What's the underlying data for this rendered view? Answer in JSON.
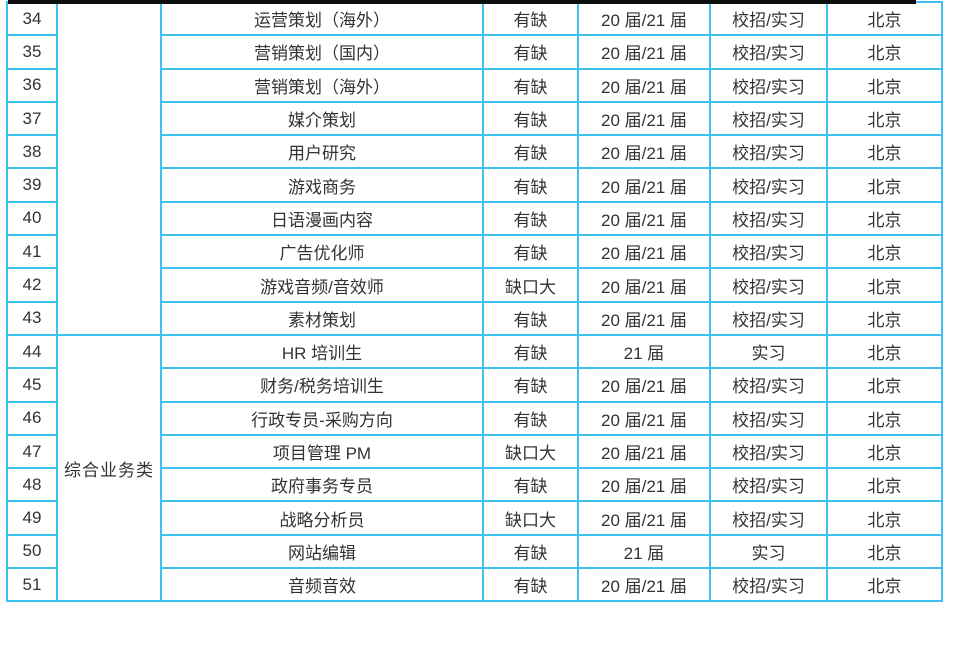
{
  "page": {
    "background": "#ffffff"
  },
  "colors": {
    "table_border": "#3ec1f0",
    "text": "#333333",
    "status_alert": "#ee1111",
    "top_divider": "#0d0d0d"
  },
  "divider": {
    "present": true
  },
  "table": {
    "columns": [
      "row-number",
      "category",
      "position",
      "status",
      "batch",
      "recruit-type",
      "location"
    ],
    "category_groups": [
      {
        "label": "",
        "start_index": 0,
        "rowspan": 10
      },
      {
        "label": "综合业务类",
        "start_index": 10,
        "rowspan": 8
      }
    ],
    "rows": [
      {
        "num": "34",
        "position": "运营策划（海外）",
        "status": "有缺",
        "status_highlight": false,
        "batch": "20 届/21 届",
        "recruit_type": "校招/实习",
        "location": "北京"
      },
      {
        "num": "35",
        "position": "营销策划（国内）",
        "status": "有缺",
        "status_highlight": false,
        "batch": "20 届/21 届",
        "recruit_type": "校招/实习",
        "location": "北京"
      },
      {
        "num": "36",
        "position": "营销策划（海外）",
        "status": "有缺",
        "status_highlight": false,
        "batch": "20 届/21 届",
        "recruit_type": "校招/实习",
        "location": "北京"
      },
      {
        "num": "37",
        "position": "媒介策划",
        "status": "有缺",
        "status_highlight": false,
        "batch": "20 届/21 届",
        "recruit_type": "校招/实习",
        "location": "北京"
      },
      {
        "num": "38",
        "position": "用户研究",
        "status": "有缺",
        "status_highlight": false,
        "batch": "20 届/21 届",
        "recruit_type": "校招/实习",
        "location": "北京"
      },
      {
        "num": "39",
        "position": "游戏商务",
        "status": "有缺",
        "status_highlight": false,
        "batch": "20 届/21 届",
        "recruit_type": "校招/实习",
        "location": "北京"
      },
      {
        "num": "40",
        "position": "日语漫画内容",
        "status": "有缺",
        "status_highlight": false,
        "batch": "20 届/21 届",
        "recruit_type": "校招/实习",
        "location": "北京"
      },
      {
        "num": "41",
        "position": "广告优化师",
        "status": "有缺",
        "status_highlight": false,
        "batch": "20 届/21 届",
        "recruit_type": "校招/实习",
        "location": "北京"
      },
      {
        "num": "42",
        "position": "游戏音频/音效师",
        "status": "缺口大",
        "status_highlight": true,
        "batch": "20 届/21 届",
        "recruit_type": "校招/实习",
        "location": "北京"
      },
      {
        "num": "43",
        "position": "素材策划",
        "status": "有缺",
        "status_highlight": false,
        "batch": "20 届/21 届",
        "recruit_type": "校招/实习",
        "location": "北京"
      },
      {
        "num": "44",
        "position": "HR 培训生",
        "status": "有缺",
        "status_highlight": false,
        "batch": "21 届",
        "recruit_type": "实习",
        "location": "北京"
      },
      {
        "num": "45",
        "position": "财务/税务培训生",
        "status": "有缺",
        "status_highlight": false,
        "batch": "20 届/21 届",
        "recruit_type": "校招/实习",
        "location": "北京"
      },
      {
        "num": "46",
        "position": "行政专员-采购方向",
        "status": "有缺",
        "status_highlight": false,
        "batch": "20 届/21 届",
        "recruit_type": "校招/实习",
        "location": "北京"
      },
      {
        "num": "47",
        "position": "项目管理 PM",
        "status": "缺口大",
        "status_highlight": true,
        "batch": "20 届/21 届",
        "recruit_type": "校招/实习",
        "location": "北京"
      },
      {
        "num": "48",
        "position": "政府事务专员",
        "status": "有缺",
        "status_highlight": false,
        "batch": "20 届/21 届",
        "recruit_type": "校招/实习",
        "location": "北京"
      },
      {
        "num": "49",
        "position": "战略分析员",
        "status": "缺口大",
        "status_highlight": true,
        "batch": "20 届/21 届",
        "recruit_type": "校招/实习",
        "location": "北京"
      },
      {
        "num": "50",
        "position": "网站编辑",
        "status": "有缺",
        "status_highlight": false,
        "batch": "21 届",
        "recruit_type": "实习",
        "location": "北京"
      },
      {
        "num": "51",
        "position": "音频音效",
        "status": "有缺",
        "status_highlight": false,
        "batch": "20 届/21 届",
        "recruit_type": "校招/实习",
        "location": "北京"
      }
    ]
  }
}
